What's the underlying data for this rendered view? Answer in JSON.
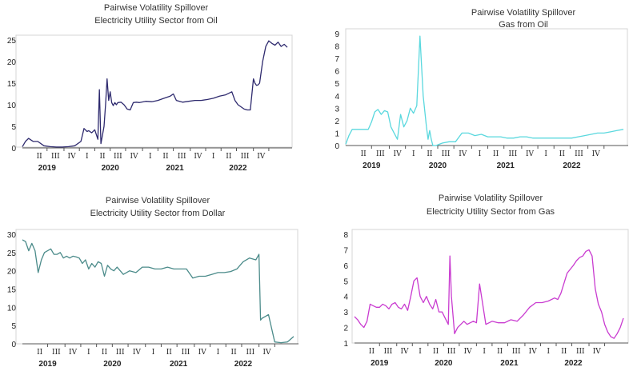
{
  "chart_data": [
    {
      "type": "line",
      "title": "Pairwise Volatility Spillover",
      "subtitle": "Electricity Utility Sector from Oil",
      "color": "#2e2a6e",
      "ylim": [
        0,
        25
      ],
      "yticks": [
        "0",
        "5",
        "10",
        "15",
        "20",
        "25"
      ],
      "quarter_labels": [
        "II",
        "III",
        "IV",
        "I",
        "II",
        "III",
        "IV",
        "I",
        "II",
        "III",
        "IV",
        "I",
        "II",
        "III",
        "IV"
      ],
      "year_labels": [
        "2019",
        "2020",
        "2021",
        "2022"
      ],
      "grid": false,
      "series": [
        {
          "x": [
            0,
            0.1,
            0.2,
            0.35,
            0.5,
            0.7,
            0.9,
            1.1,
            1.3,
            1.5,
            1.7,
            1.9,
            2.0,
            2.1,
            2.15,
            2.25,
            2.35,
            2.45,
            2.5,
            2.55,
            2.6,
            2.65,
            2.7,
            2.75,
            2.8,
            2.85,
            2.9,
            2.95,
            3.0,
            3.05,
            3.1,
            3.2,
            3.3,
            3.4,
            3.5,
            3.6,
            3.7,
            3.8,
            4.0,
            4.2,
            4.4,
            4.6,
            4.8,
            4.9,
            5.0,
            5.2,
            5.4,
            5.6,
            5.8,
            6.0,
            6.2,
            6.4,
            6.6,
            6.8,
            6.9,
            7.0,
            7.2,
            7.3,
            7.4,
            7.5,
            7.55,
            7.6,
            7.65,
            7.7,
            7.8,
            7.9,
            8.0,
            8.1,
            8.2,
            8.3,
            8.4,
            8.5,
            8.6
          ],
          "values": [
            0.3,
            1.5,
            2.2,
            1.5,
            1.5,
            0.5,
            0.3,
            0.2,
            0.2,
            0.3,
            0.5,
            1.5,
            4.5,
            3.8,
            4.0,
            3.5,
            4.2,
            2.0,
            13.5,
            1.0,
            3.0,
            5.0,
            10.0,
            16.0,
            11.0,
            13.0,
            10.5,
            9.8,
            10.5,
            10.0,
            10.5,
            10.6,
            10.0,
            9.0,
            8.8,
            10.5,
            10.6,
            10.5,
            10.8,
            10.7,
            11.0,
            11.5,
            12.0,
            12.5,
            11.0,
            10.6,
            10.8,
            11.0,
            11.0,
            11.2,
            11.5,
            12.0,
            12.3,
            13.0,
            11.0,
            10.0,
            9.0,
            8.8,
            8.8,
            16.0,
            15.0,
            14.5,
            14.6,
            15.0,
            20.0,
            23.5,
            24.8,
            24.2,
            23.8,
            24.5,
            23.5,
            24.0,
            23.3
          ]
        }
      ]
    },
    {
      "type": "line",
      "title": "Pairwise Volatility Spillover",
      "subtitle": "Gas from Oil",
      "color": "#5ad8de",
      "ylim": [
        0,
        9
      ],
      "yticks": [
        "0",
        "1",
        "2",
        "3",
        "4",
        "5",
        "6",
        "7",
        "8",
        "9"
      ],
      "quarter_labels": [
        "II",
        "III",
        "IV",
        "I",
        "II",
        "III",
        "IV",
        "I",
        "II",
        "III",
        "IV",
        "I",
        "II",
        "III",
        "IV"
      ],
      "year_labels": [
        "2019",
        "2020",
        "2021",
        "2022"
      ],
      "grid": false,
      "series": [
        {
          "x": [
            0,
            0.1,
            0.2,
            0.35,
            0.5,
            0.7,
            0.8,
            0.9,
            1.0,
            1.1,
            1.2,
            1.3,
            1.4,
            1.5,
            1.6,
            1.7,
            1.8,
            1.9,
            2.0,
            2.1,
            2.2,
            2.3,
            2.4,
            2.5,
            2.55,
            2.6,
            2.65,
            2.7,
            2.8,
            2.9,
            3.0,
            3.2,
            3.4,
            3.6,
            3.8,
            4.0,
            4.2,
            4.4,
            4.6,
            4.8,
            5.0,
            5.2,
            5.4,
            5.6,
            5.8,
            6.0,
            6.2,
            6.4,
            6.6,
            6.8,
            7.0,
            7.2,
            7.4,
            7.6,
            7.8,
            8.0,
            8.2,
            8.4,
            8.6
          ],
          "values": [
            0.1,
            0.8,
            1.3,
            1.3,
            1.3,
            1.3,
            1.9,
            2.7,
            2.9,
            2.5,
            2.8,
            2.7,
            1.5,
            1.0,
            0.5,
            2.5,
            1.5,
            2.0,
            3.0,
            2.6,
            3.2,
            8.8,
            4.0,
            1.5,
            0.5,
            1.2,
            0.5,
            0.0,
            0.0,
            0.1,
            0.2,
            0.3,
            0.3,
            1.0,
            1.0,
            0.8,
            0.9,
            0.7,
            0.7,
            0.7,
            0.6,
            0.6,
            0.7,
            0.7,
            0.6,
            0.6,
            0.6,
            0.6,
            0.6,
            0.6,
            0.6,
            0.7,
            0.8,
            0.9,
            1.0,
            1.0,
            1.1,
            1.2,
            1.3
          ]
        }
      ]
    },
    {
      "type": "line",
      "title": "Pairwise Volatility Spillover",
      "subtitle": "Electricity Utility Sector from Dollar",
      "color": "#4b8b8a",
      "ylim": [
        0,
        30
      ],
      "yticks": [
        "0",
        "5",
        "10",
        "15",
        "20",
        "25",
        "30"
      ],
      "quarter_labels": [
        "II",
        "III",
        "IV",
        "I",
        "II",
        "III",
        "IV",
        "I",
        "II",
        "III",
        "IV",
        "I",
        "II",
        "III",
        "IV"
      ],
      "year_labels": [
        "2019",
        "2020",
        "2021",
        "2022"
      ],
      "grid": false,
      "series": [
        {
          "x": [
            0,
            0.1,
            0.2,
            0.3,
            0.4,
            0.5,
            0.6,
            0.7,
            0.8,
            0.9,
            1.0,
            1.1,
            1.2,
            1.3,
            1.4,
            1.5,
            1.6,
            1.7,
            1.8,
            1.9,
            2.0,
            2.1,
            2.2,
            2.3,
            2.4,
            2.5,
            2.6,
            2.7,
            2.8,
            2.9,
            3.0,
            3.2,
            3.4,
            3.6,
            3.8,
            4.0,
            4.2,
            4.4,
            4.6,
            4.8,
            5.0,
            5.2,
            5.4,
            5.6,
            5.8,
            6.0,
            6.2,
            6.4,
            6.6,
            6.8,
            7.0,
            7.2,
            7.4,
            7.5,
            7.55,
            7.6,
            7.7,
            7.8,
            8.0,
            8.2,
            8.4,
            8.6
          ],
          "values": [
            28.5,
            28.0,
            25.5,
            27.5,
            25.5,
            19.5,
            23.0,
            25.0,
            25.5,
            26.0,
            24.5,
            24.5,
            25.0,
            23.5,
            24.0,
            23.5,
            24.0,
            23.8,
            23.5,
            22.0,
            23.0,
            20.5,
            22.0,
            21.0,
            22.5,
            22.0,
            18.5,
            21.5,
            20.5,
            20.0,
            21.0,
            19.0,
            20.0,
            19.5,
            21.0,
            21.0,
            20.5,
            20.5,
            21.0,
            20.5,
            20.5,
            20.5,
            18.0,
            18.5,
            18.5,
            19.0,
            19.5,
            19.5,
            19.8,
            20.5,
            22.5,
            23.5,
            23.0,
            24.5,
            6.5,
            7.0,
            7.5,
            8.0,
            0.5,
            0.3,
            0.5,
            2.0
          ]
        }
      ]
    },
    {
      "type": "line",
      "title": "Pairwise Volatility Spillover",
      "subtitle": "Electricity Utility Sector from Gas",
      "color": "#c93bd0",
      "ylim": [
        1,
        8
      ],
      "yticks": [
        "1",
        "2",
        "3",
        "4",
        "5",
        "6",
        "7",
        "8"
      ],
      "quarter_labels": [
        "II",
        "III",
        "IV",
        "I",
        "II",
        "III",
        "IV",
        "I",
        "II",
        "III",
        "IV",
        "I",
        "II",
        "III",
        "IV"
      ],
      "year_labels": [
        "2019",
        "2020",
        "2021",
        "2022"
      ],
      "grid": false,
      "series": [
        {
          "x": [
            0,
            0.1,
            0.2,
            0.3,
            0.4,
            0.5,
            0.6,
            0.7,
            0.8,
            0.9,
            1.0,
            1.1,
            1.2,
            1.3,
            1.4,
            1.5,
            1.6,
            1.7,
            1.8,
            1.9,
            2.0,
            2.1,
            2.2,
            2.3,
            2.4,
            2.5,
            2.6,
            2.7,
            2.8,
            2.9,
            3.0,
            3.05,
            3.1,
            3.2,
            3.3,
            3.4,
            3.5,
            3.6,
            3.7,
            3.8,
            3.9,
            4.0,
            4.2,
            4.4,
            4.6,
            4.8,
            5.0,
            5.2,
            5.4,
            5.6,
            5.8,
            6.0,
            6.2,
            6.4,
            6.5,
            6.6,
            6.8,
            7.0,
            7.1,
            7.2,
            7.3,
            7.4,
            7.5,
            7.6,
            7.7,
            7.8,
            7.9,
            8.0,
            8.1,
            8.2,
            8.3,
            8.4,
            8.5,
            8.6
          ],
          "values": [
            2.7,
            2.5,
            2.2,
            2.0,
            2.4,
            3.5,
            3.4,
            3.3,
            3.3,
            3.5,
            3.4,
            3.2,
            3.5,
            3.6,
            3.3,
            3.2,
            3.5,
            3.1,
            4.0,
            5.0,
            5.2,
            4.0,
            3.6,
            4.0,
            3.5,
            3.2,
            3.8,
            3.0,
            3.0,
            2.6,
            2.2,
            6.6,
            4.0,
            1.6,
            2.0,
            2.2,
            2.4,
            2.2,
            2.3,
            2.4,
            2.3,
            4.8,
            2.2,
            2.4,
            2.3,
            2.3,
            2.5,
            2.4,
            2.8,
            3.3,
            3.6,
            3.6,
            3.7,
            3.9,
            3.8,
            4.2,
            5.5,
            6.0,
            6.3,
            6.5,
            6.6,
            6.9,
            7.0,
            6.6,
            4.5,
            3.5,
            3.0,
            2.2,
            1.7,
            1.4,
            1.3,
            1.6,
            2.0,
            2.6
          ]
        }
      ]
    }
  ]
}
